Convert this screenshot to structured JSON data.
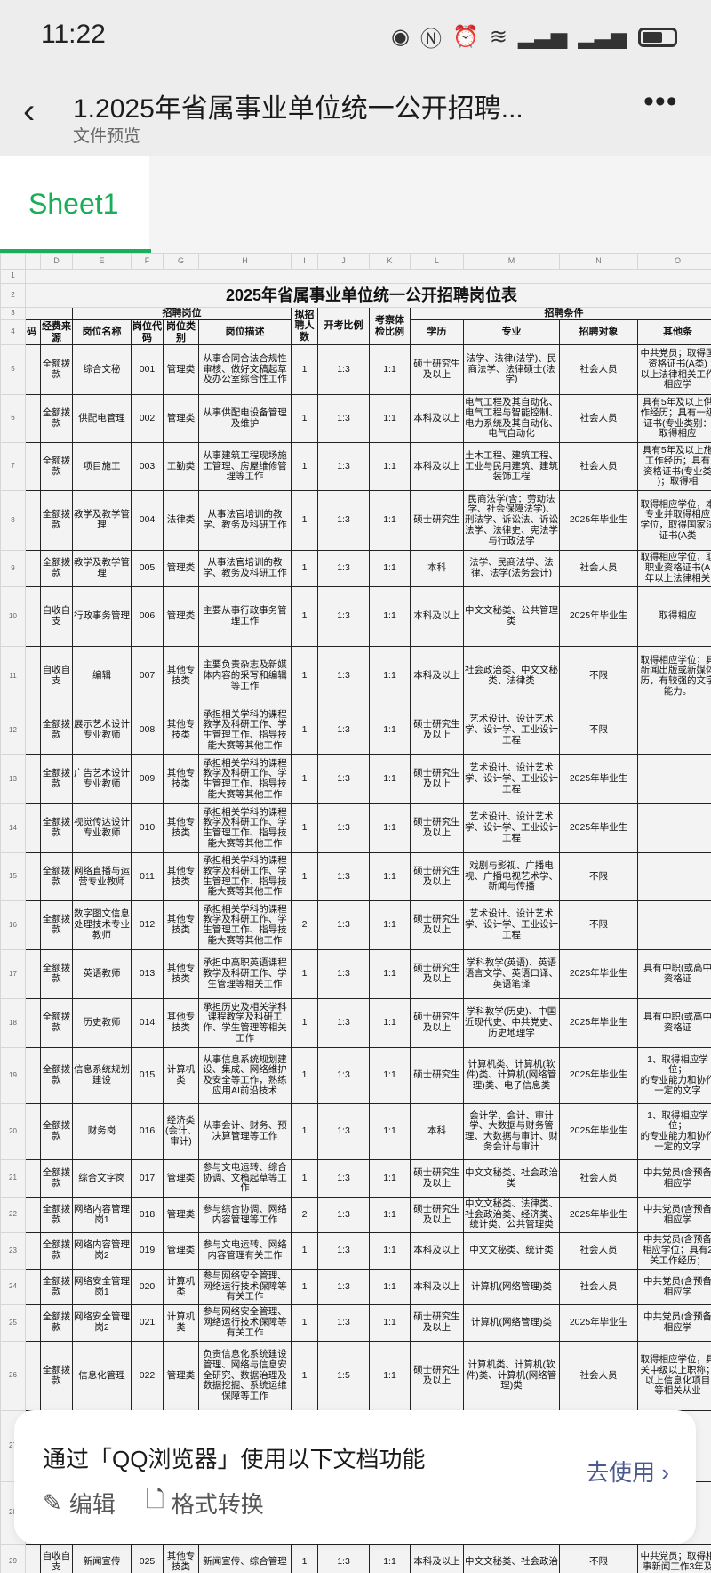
{
  "status": {
    "time": "11:22",
    "icons": [
      "eye-icon",
      "nfc-icon",
      "alarm-icon",
      "wifi-icon",
      "signal-icon",
      "signal-icon",
      "battery-icon"
    ]
  },
  "header": {
    "title": "1.2025年省属事业单位统一公开招聘...",
    "subtitle": "文件预览"
  },
  "tabs": [
    {
      "label": "Sheet1",
      "active": true
    }
  ],
  "accent": "#1aad5a",
  "sheet": {
    "columns": [
      "",
      "D",
      "E",
      "F",
      "G",
      "H",
      "I",
      "J",
      "K",
      "L",
      "M",
      "N",
      "O"
    ],
    "title": "2025年省属事业单位统一公开招聘岗位表",
    "group1": "招聘岗位",
    "group2": "招聘条件",
    "headers": {
      "c": "码",
      "d": "经费来源",
      "e": "岗位名称",
      "f": "岗位代码",
      "g": "岗位类别",
      "h": "岗位描述",
      "i": "拟招聘人数",
      "j": "开考比例",
      "k": "考察体检比例",
      "l": "学历",
      "m": "专业",
      "n": "招聘对象",
      "o": "其他条"
    },
    "rows": [
      {
        "n": "5",
        "cells": [
          "",
          "全额拨款",
          "综合文秘",
          "001",
          "管理类",
          "从事合同合法合规性审核、做好文稿起草及办公室综合性工作",
          "1",
          "1:3",
          "1:1",
          "硕士研究生及以上",
          "法学、法律(法学)、民商法学、法律硕士(法学)",
          "社会人员",
          "中共党员；取得国\n资格证书(A类)\n以上法律相关工作\n相应学"
        ]
      },
      {
        "n": "6",
        "cells": [
          "",
          "全额拨款",
          "供配电管理",
          "002",
          "管理类",
          "从事供配电设备管理及维护",
          "1",
          "1:3",
          "1:1",
          "本科及以上",
          "电气工程及其自动化、电气工程与智能控制、电力系统及其自动化、电气自动化",
          "社会人员",
          "具有5年及以上供\n作经历；具有一级\n证书(专业类别：\n取得相应"
        ]
      },
      {
        "n": "7",
        "cells": [
          "",
          "全额拨款",
          "项目施工",
          "003",
          "工勤类",
          "从事建筑工程现场施工管理、房屋维修管理等工作",
          "1",
          "1:3",
          "1:1",
          "本科及以上",
          "土木工程、建筑工程、工业与民用建筑、建筑装饰工程",
          "社会人员",
          "具有5年及以上施\n工作经历；具有\n资格证书(专业类\n)；取得相"
        ]
      },
      {
        "n": "8",
        "cells": [
          "",
          "全额拨款",
          "教学及教学管理",
          "004",
          "法律类",
          "从事法官培训的教学、教务及科研工作",
          "1",
          "1:3",
          "1:1",
          "硕士研究生",
          "民商法学(含：劳动法学、社会保障法学)、刑法学、诉讼法、诉讼法学、法律史、宪法学与行政法学",
          "2025年毕业生",
          "取得相应学位，本\n专业并取得相应\n学位，取得国家法\n证书(A类"
        ]
      },
      {
        "n": "9",
        "cells": [
          "",
          "全额拨款",
          "教学及教学管理",
          "005",
          "管理类",
          "从事法官培训的教学、教务及科研工作",
          "1",
          "1:3",
          "1:1",
          "本科",
          "法学、民商法学、法律、法学(法务会计)",
          "社会人员",
          "取得相应学位，取\n职业资格证书(A\n年以上法律相关"
        ]
      },
      {
        "n": "10",
        "cells": [
          "",
          "自收自支",
          "行政事务管理",
          "006",
          "管理类",
          "主要从事行政事务管理工作",
          "1",
          "1:3",
          "1:1",
          "本科及以上",
          "中文文秘类、公共管理类",
          "2025年毕业生",
          "取得相应"
        ]
      },
      {
        "n": "11",
        "cells": [
          "",
          "自收自支",
          "编辑",
          "007",
          "其他专技类",
          "主要负责杂志及新媒体内容的采写和编辑等工作",
          "1",
          "1:3",
          "1:1",
          "本科及以上",
          "社会政治类、中文文秘类、法律类",
          "不限",
          "取得相应学位；具\n新闻出版或新媒体\n历，有较强的文字\n能力。"
        ]
      },
      {
        "n": "12",
        "cells": [
          "",
          "全额拨款",
          "展示艺术设计专业教师",
          "008",
          "其他专技类",
          "承担相关学科的课程教学及科研工作、学生管理工作、指导技能大赛等其他工作",
          "1",
          "1:3",
          "1:1",
          "硕士研究生及以上",
          "艺术设计、设计艺术学、设计学、工业设计工程",
          "不限",
          ""
        ]
      },
      {
        "n": "13",
        "cells": [
          "",
          "全额拨款",
          "广告艺术设计专业教师",
          "009",
          "其他专技类",
          "承担相关学科的课程教学及科研工作、学生管理工作、指导技能大赛等其他工作",
          "1",
          "1:3",
          "1:1",
          "硕士研究生及以上",
          "艺术设计、设计艺术学、设计学、工业设计工程",
          "2025年毕业生",
          ""
        ]
      },
      {
        "n": "14",
        "cells": [
          "",
          "全额拨款",
          "视觉传达设计专业教师",
          "010",
          "其他专技类",
          "承担相关学科的课程教学及科研工作、学生管理工作、指导技能大赛等其他工作",
          "1",
          "1:3",
          "1:1",
          "硕士研究生及以上",
          "艺术设计、设计艺术学、设计学、工业设计工程",
          "2025年毕业生",
          ""
        ]
      },
      {
        "n": "15",
        "cells": [
          "",
          "全额拨款",
          "网络直播与运营专业教师",
          "011",
          "其他专技类",
          "承担相关学科的课程教学及科研工作、学生管理工作、指导技能大赛等其他工作",
          "1",
          "1:3",
          "1:1",
          "硕士研究生及以上",
          "戏剧与影视、广播电视、广播电视艺术学、新闻与传播",
          "不限",
          ""
        ]
      },
      {
        "n": "16",
        "cells": [
          "",
          "全额拨款",
          "数字图文信息处理技术专业教师",
          "012",
          "其他专技类",
          "承担相关学科的课程教学及科研工作、学生管理工作、指导技能大赛等其他工作",
          "2",
          "1:3",
          "1:1",
          "硕士研究生及以上",
          "艺术设计、设计艺术学、设计学、工业设计工程",
          "不限",
          ""
        ]
      },
      {
        "n": "17",
        "cells": [
          "",
          "全额拨款",
          "英语教师",
          "013",
          "其他专技类",
          "承担中高职英语课程教学及科研工作、学生管理等相关工作",
          "1",
          "1:3",
          "1:1",
          "硕士研究生及以上",
          "学科教学(英语)、英语语言文学、英语口译、英语笔译",
          "2025年毕业生",
          "具有中职(或高中\n资格证"
        ]
      },
      {
        "n": "18",
        "cells": [
          "",
          "全额拨款",
          "历史教师",
          "014",
          "其他专技类",
          "承担历史及相关学科课程教学及科研工作、学生管理等相关工作",
          "1",
          "1:3",
          "1:1",
          "硕士研究生及以上",
          "学科教学(历史)、中国近现代史、中共党史、历史地理学",
          "2025年毕业生",
          "具有中职(或高中\n资格证"
        ]
      },
      {
        "n": "19",
        "cells": [
          "",
          "全额拨款",
          "信息系统规划建设",
          "015",
          "计算机类",
          "从事信息系统规划建设、集成、网络维护及安全等工作，熟练应用AI前沿技术",
          "1",
          "1:3",
          "1:1",
          "硕士研究生",
          "计算机类、计算机(软件)类、计算机(网络管理)类、电子信息类",
          "2025年毕业生",
          "1、取得相应学位；\n的专业能力和协作\n一定的文字"
        ]
      },
      {
        "n": "20",
        "cells": [
          "",
          "全额拨款",
          "财务岗",
          "016",
          "经济类(会计、审计)",
          "从事会计、财务、预决算管理等工作",
          "1",
          "1:3",
          "1:1",
          "本科",
          "会计学、会计、审计学、大数据与财务管理、大数据与审计、财务会计与审计",
          "2025年毕业生",
          "1、取得相应学位；\n的专业能力和协作\n一定的文字"
        ]
      },
      {
        "n": "21",
        "cells": [
          "",
          "全额拨款",
          "综合文字岗",
          "017",
          "管理类",
          "参与文电运转、综合协调、文稿起草等工作",
          "1",
          "1:3",
          "1:1",
          "硕士研究生及以上",
          "中文文秘类、社会政治类",
          "社会人员",
          "中共党员(含预备\n相应学"
        ]
      },
      {
        "n": "22",
        "cells": [
          "",
          "全额拨款",
          "网络内容管理岗1",
          "018",
          "管理类",
          "参与综合协调、网络内容管理等工作",
          "2",
          "1:3",
          "1:1",
          "硕士研究生及以上",
          "中文文秘类、法律类、社会政治类、经济类、统计类、公共管理类",
          "2025年毕业生",
          "中共党员(含预备\n相应学"
        ]
      },
      {
        "n": "23",
        "cells": [
          "",
          "全额拨款",
          "网络内容管理岗2",
          "019",
          "管理类",
          "参与文电运转、网络内容管理有关工作",
          "1",
          "1:3",
          "1:1",
          "本科及以上",
          "中文文秘类、统计类",
          "社会人员",
          "中共党员(含预备\n相应学位；具有2\n关工作经历；"
        ]
      },
      {
        "n": "24",
        "cells": [
          "",
          "全额拨款",
          "网络安全管理岗1",
          "020",
          "计算机类",
          "参与网络安全管理、网络运行技术保障等有关工作",
          "1",
          "1:3",
          "1:1",
          "本科及以上",
          "计算机(网络管理)类",
          "社会人员",
          "中共党员(含预备\n相应学"
        ]
      },
      {
        "n": "25",
        "cells": [
          "",
          "全额拨款",
          "网络安全管理岗2",
          "021",
          "计算机类",
          "参与网络安全管理、网络运行技术保障等有关工作",
          "1",
          "1:3",
          "1:1",
          "硕士研究生及以上",
          "计算机(网络管理)类",
          "2025年毕业生",
          "中共党员(含预备\n相应学"
        ]
      },
      {
        "n": "26",
        "cells": [
          "",
          "全额拨款",
          "信息化管理",
          "022",
          "管理类",
          "负责信息化系统建设管理、网络与信息安全研究、数据治理及数据挖掘、系统运维保障等工作",
          "1",
          "1:5",
          "1:1",
          "硕士研究生及以上",
          "计算机类、计算机(软件)类、计算机(网络管理)类",
          "社会人员",
          "取得相应学位，具\n关中级以上职称；\n以上信息化项目\n等相关从业"
        ]
      },
      {
        "n": "27",
        "cells": [
          "",
          "",
          "",
          "",
          "",
          "",
          "",
          "",
          "",
          "",
          "",
          "",
          ""
        ]
      },
      {
        "n": "28",
        "cells": [
          "",
          "",
          "",
          "",
          "",
          "",
          "",
          "",
          "",
          "",
          "",
          "",
          ""
        ]
      },
      {
        "n": "29",
        "cells": [
          "",
          "自收自支",
          "新闻宣传",
          "025",
          "其他专技类",
          "新闻宣传、综合管理",
          "1",
          "1:3",
          "1:1",
          "本科及以上",
          "中文文秘类、社会政治",
          "不限",
          "中共党员；取得相\n事新闻工作3年及"
        ]
      }
    ]
  },
  "overlay": {
    "message": "通过「QQ浏览器」使用以下文档功能",
    "edit": "编辑",
    "convert": "格式转换",
    "go": "去使用 ›",
    "go_color": "#4b5a8c"
  }
}
